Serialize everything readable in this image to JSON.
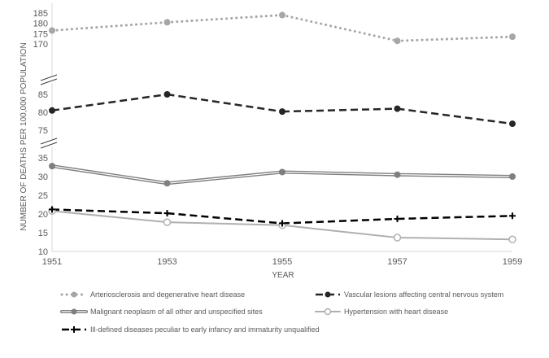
{
  "chart_data": {
    "type": "line",
    "xlabel": "YEAR",
    "ylabel": "NUMBER OF DEATHS PER 100,000 POPULATION",
    "x": [
      "1951",
      "1953",
      "1955",
      "1957",
      "1959"
    ],
    "y_break_segments": [
      {
        "ticks": [
          "170",
          "175",
          "180",
          "185"
        ],
        "range": [
          168,
          186
        ]
      },
      {
        "ticks": [
          "75",
          "80",
          "85"
        ],
        "range": [
          73,
          87
        ]
      },
      {
        "ticks": [
          "10",
          "15",
          "20",
          "25",
          "30",
          "35"
        ],
        "range": [
          10,
          37
        ]
      }
    ],
    "grid": false,
    "legend_position": "bottom",
    "series": [
      {
        "name": "Arteriosclerosis and degenerative  heart disease",
        "values": [
          176.5,
          180.5,
          184,
          171.5,
          173.5
        ],
        "style": "dotted",
        "color": "#a6a6a6",
        "marker": "circle"
      },
      {
        "name": "Vascular lesions affecting  central nervous  system",
        "values": [
          80.5,
          85,
          80.2,
          81,
          76.8
        ],
        "style": "dashed",
        "color": "#262626",
        "marker": "circle"
      },
      {
        "name": "Malignant neoplasm of all other and unspecified sites",
        "values": [
          32.8,
          28.2,
          31.2,
          30.5,
          30
        ],
        "style": "double",
        "color": "#7f7f7f",
        "marker": "circle"
      },
      {
        "name": "Hypertension with heart disease",
        "values": [
          20.8,
          17.8,
          17,
          13.7,
          13.2
        ],
        "style": "solid",
        "color": "#b0b0b0",
        "marker": "open-circle"
      },
      {
        "name": "Ill-defined diseases peculiar to early infancy and immaturity unqualified",
        "values": [
          21.2,
          20.2,
          17.5,
          18.7,
          19.5
        ],
        "style": "dashed",
        "color": "#000000",
        "marker": "plus"
      }
    ]
  }
}
